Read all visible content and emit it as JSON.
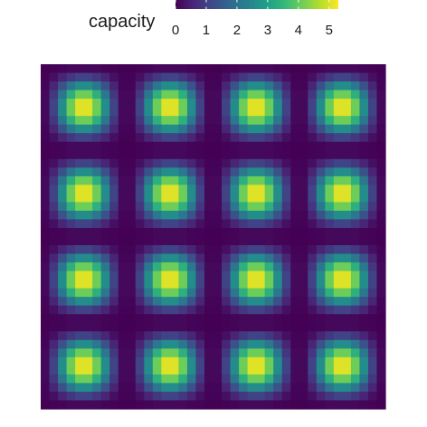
{
  "chart_data": {
    "type": "heatmap",
    "title": "",
    "xlabel": "",
    "ylabel": "",
    "grid": false,
    "axes_shown": false,
    "legend": {
      "title": "capacity",
      "position": "top",
      "range": [
        0,
        5.3
      ],
      "ticks": [
        0,
        1,
        2,
        3,
        4,
        5
      ],
      "tick_labels": [
        "0",
        "1",
        "2",
        "3",
        "4",
        "5"
      ]
    },
    "colormap": "viridis",
    "palette": [
      "#440154",
      "#482878",
      "#3e4989",
      "#31688e",
      "#26828e",
      "#1f9e89",
      "#35b779",
      "#6ece58",
      "#b5de2b",
      "#fde725"
    ],
    "grid_size": [
      40,
      40
    ],
    "blobs": {
      "rows": 4,
      "cols": 4,
      "peak_value": 5.3,
      "min_value": 0
    },
    "value_function": "capacity = 5.3 * sin^2(pi * 4 * (i + 0.5) / 40) * sin^2(pi * 4 * (j + 0.5) / 40), i,j = cell indices 0..39"
  }
}
